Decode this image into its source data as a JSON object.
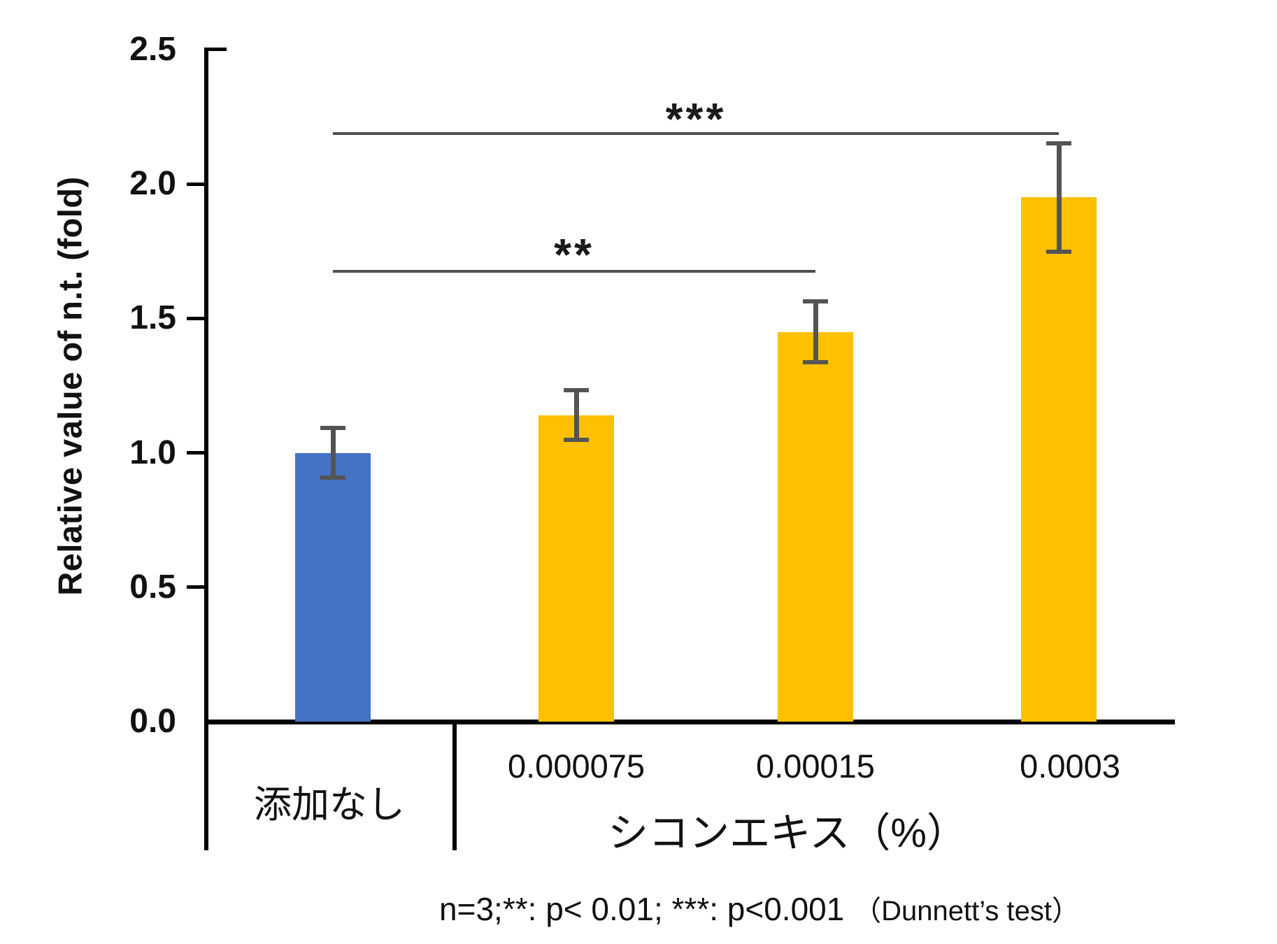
{
  "chart_data": {
    "type": "bar",
    "title": "",
    "ylabel": "Relative value of n.t. (fold)",
    "ylim": [
      0.0,
      2.5
    ],
    "ytick_values": [
      2.5,
      2.0,
      1.5,
      1.0,
      0.5,
      0.0
    ],
    "ytick_labels": [
      "2.5",
      "2.0",
      "1.5",
      "1.0",
      "0.5",
      "0.0"
    ],
    "categories": [
      "添加なし",
      "0.000075",
      "0.00015",
      "0.0003"
    ],
    "series": [
      {
        "name": "Relative value of n.t. (fold)",
        "values": [
          1.0,
          1.14,
          1.45,
          1.95
        ],
        "errors": [
          0.09,
          0.09,
          0.11,
          0.2
        ]
      }
    ],
    "bar_colors": [
      "#4472C4",
      "#FFC000",
      "#FFC000",
      "#FFC000"
    ],
    "error_bar_color": "#545454",
    "grid": false,
    "legend_position": "none",
    "group_axis_label": "シコンエキス（%）",
    "control_category_label": "添加なし",
    "significance_brackets": [
      {
        "label": "**",
        "from_index": 0,
        "to_index": 2
      },
      {
        "label": "***",
        "from_index": 0,
        "to_index": 3
      }
    ],
    "caption_main": "n=3;**: p< 0.01; ***: p<0.001",
    "caption_note": "（Dunnett’s test）"
  }
}
